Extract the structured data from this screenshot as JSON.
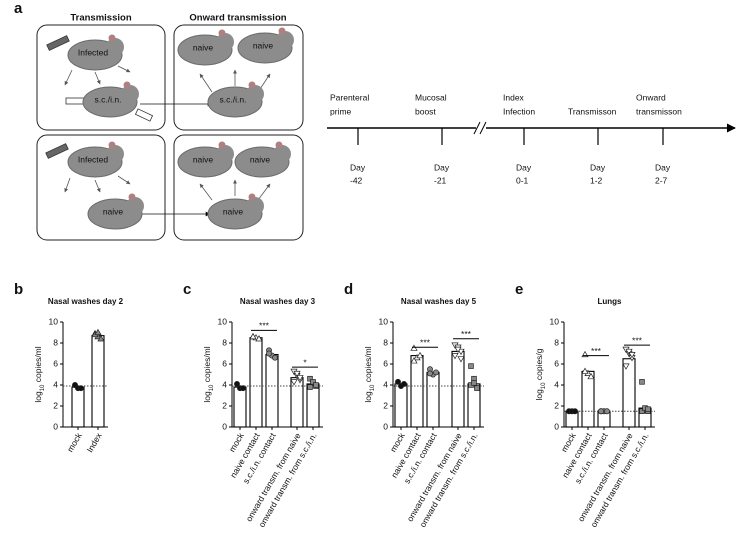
{
  "diagram": {
    "label": "a",
    "headers": [
      "Transmission",
      "Onward transmission"
    ],
    "hamsters": [
      "Infected",
      "s.c./i.n.",
      "naive",
      "naive",
      "s.c./i.n.",
      "Infected",
      "naive",
      "naive",
      "naive",
      "naive"
    ],
    "events": [
      [
        "Parenteral",
        "prime"
      ],
      [
        "Mucosal",
        "boost"
      ],
      [
        "Index",
        "Infection"
      ],
      [
        "Transmisson"
      ],
      [
        "Onward",
        "transmisson"
      ]
    ],
    "days": [
      [
        "Day",
        "-42"
      ],
      [
        "Day",
        "-21"
      ],
      [
        "Day",
        "0-1"
      ],
      [
        "Day",
        "1-2"
      ],
      [
        "Day",
        "2-7"
      ]
    ]
  },
  "chart_data": [
    {
      "type": "bar",
      "label": "b",
      "title": "Nasal washes day 2",
      "ylabel": [
        "log",
        "10",
        " copies/ml"
      ],
      "categories": [
        "mock",
        "Index"
      ],
      "values": [
        3.8,
        8.7
      ],
      "points": [
        [
          4.0,
          3.7,
          3.7
        ],
        [
          8.9,
          8.6,
          8.4,
          8.8,
          9.0
        ]
      ],
      "point_colors": [
        "#111111",
        "#888888"
      ],
      "ylim": [
        0,
        10
      ],
      "yticks": [
        0,
        2,
        4,
        6,
        8,
        10
      ],
      "detection_limit": 3.9,
      "annotations": []
    },
    {
      "type": "bar",
      "label": "c",
      "title": "Nasal washes day 3",
      "ylabel": [
        "log",
        "10",
        " copies/ml"
      ],
      "categories": [
        "mock",
        "naive contact",
        "s.c./i.n. contact",
        "onward transm. from naive",
        "onward transm. from s.c./i.n."
      ],
      "values": [
        3.8,
        8.5,
        6.9,
        4.7,
        4.1
      ],
      "points": [
        [
          4.1,
          3.7,
          3.7
        ],
        [
          8.6,
          8.5,
          8.4,
          8.6
        ],
        [
          7.3,
          6.8,
          6.6,
          7.0
        ],
        [
          5.3,
          4.9,
          4.5,
          4.3,
          5.1,
          4.7
        ],
        [
          4.6,
          4.2,
          3.9,
          3.8,
          4.3,
          4.0
        ]
      ],
      "point_colors": [
        "#111111",
        "#ffffff",
        "#888888",
        "#ffffff",
        "#888888"
      ],
      "ylim": [
        0,
        10
      ],
      "yticks": [
        0,
        2,
        4,
        6,
        8,
        10
      ],
      "detection_limit": 3.9,
      "annotations": [
        {
          "text": "***",
          "categories": [
            "naive contact",
            "s.c./i.n. contact"
          ],
          "y": 9.2
        },
        {
          "text": "*",
          "categories": [
            "onward transm. from naive",
            "onward transm. from s.c./i.n."
          ],
          "y": 5.7
        }
      ]
    },
    {
      "type": "bar",
      "label": "d",
      "title": "Nasal washes day 5",
      "ylabel": [
        "log",
        "10",
        " copies/ml"
      ],
      "categories": [
        "mock",
        "naive contact",
        "s.c./i.n. contact",
        "onward transm. from naive",
        "onward transm. from s.c./i.n."
      ],
      "values": [
        4.1,
        6.8,
        5.2,
        7.2,
        4.1
      ],
      "points": [
        [
          4.3,
          3.9,
          4.1
        ],
        [
          7.5,
          6.6,
          6.8,
          6.3
        ],
        [
          5.5,
          5.0,
          5.2,
          5.1
        ],
        [
          7.8,
          7.6,
          7.2,
          6.8,
          7.4,
          6.5
        ],
        [
          5.8,
          4.6,
          3.9,
          4.0,
          4.2,
          3.7
        ]
      ],
      "point_colors": [
        "#111111",
        "#ffffff",
        "#888888",
        "#ffffff",
        "#888888"
      ],
      "ylim": [
        0,
        10
      ],
      "yticks": [
        0,
        2,
        4,
        6,
        8,
        10
      ],
      "detection_limit": 3.9,
      "annotations": [
        {
          "text": "***",
          "categories": [
            "naive contact",
            "s.c./i.n. contact"
          ],
          "y": 7.6
        },
        {
          "text": "***",
          "categories": [
            "onward transm. from naive",
            "onward transm. from s.c./i.n."
          ],
          "y": 8.4
        }
      ]
    },
    {
      "type": "bar",
      "label": "e",
      "title": "Lungs",
      "ylabel": [
        "log",
        "10",
        " copies/g"
      ],
      "categories": [
        "mock",
        "naive contact",
        "s.c./i.n. contact",
        "onward transm. from naive",
        "onward transm. from s.c./i.n."
      ],
      "values": [
        1.5,
        5.3,
        1.5,
        6.5,
        1.8
      ],
      "points": [
        [
          1.5,
          1.5,
          1.5
        ],
        [
          6.9,
          5.1,
          4.8,
          5.3
        ],
        [
          1.5,
          1.5,
          1.5,
          1.5
        ],
        [
          7.4,
          7.0,
          6.6,
          5.8,
          7.2,
          6.9
        ],
        [
          4.3,
          1.6,
          1.5,
          1.5,
          1.8,
          1.7
        ]
      ],
      "point_colors": [
        "#111111",
        "#ffffff",
        "#888888",
        "#ffffff",
        "#888888"
      ],
      "ylim": [
        0,
        10
      ],
      "yticks": [
        0,
        2,
        4,
        6,
        8,
        10
      ],
      "detection_limit": 1.5,
      "annotations": [
        {
          "text": "***",
          "categories": [
            "naive contact",
            "s.c./i.n. contact"
          ],
          "y": 6.8
        },
        {
          "text": "***",
          "categories": [
            "onward transm. from naive",
            "onward transm. from s.c./i.n."
          ],
          "y": 7.8
        }
      ]
    }
  ]
}
